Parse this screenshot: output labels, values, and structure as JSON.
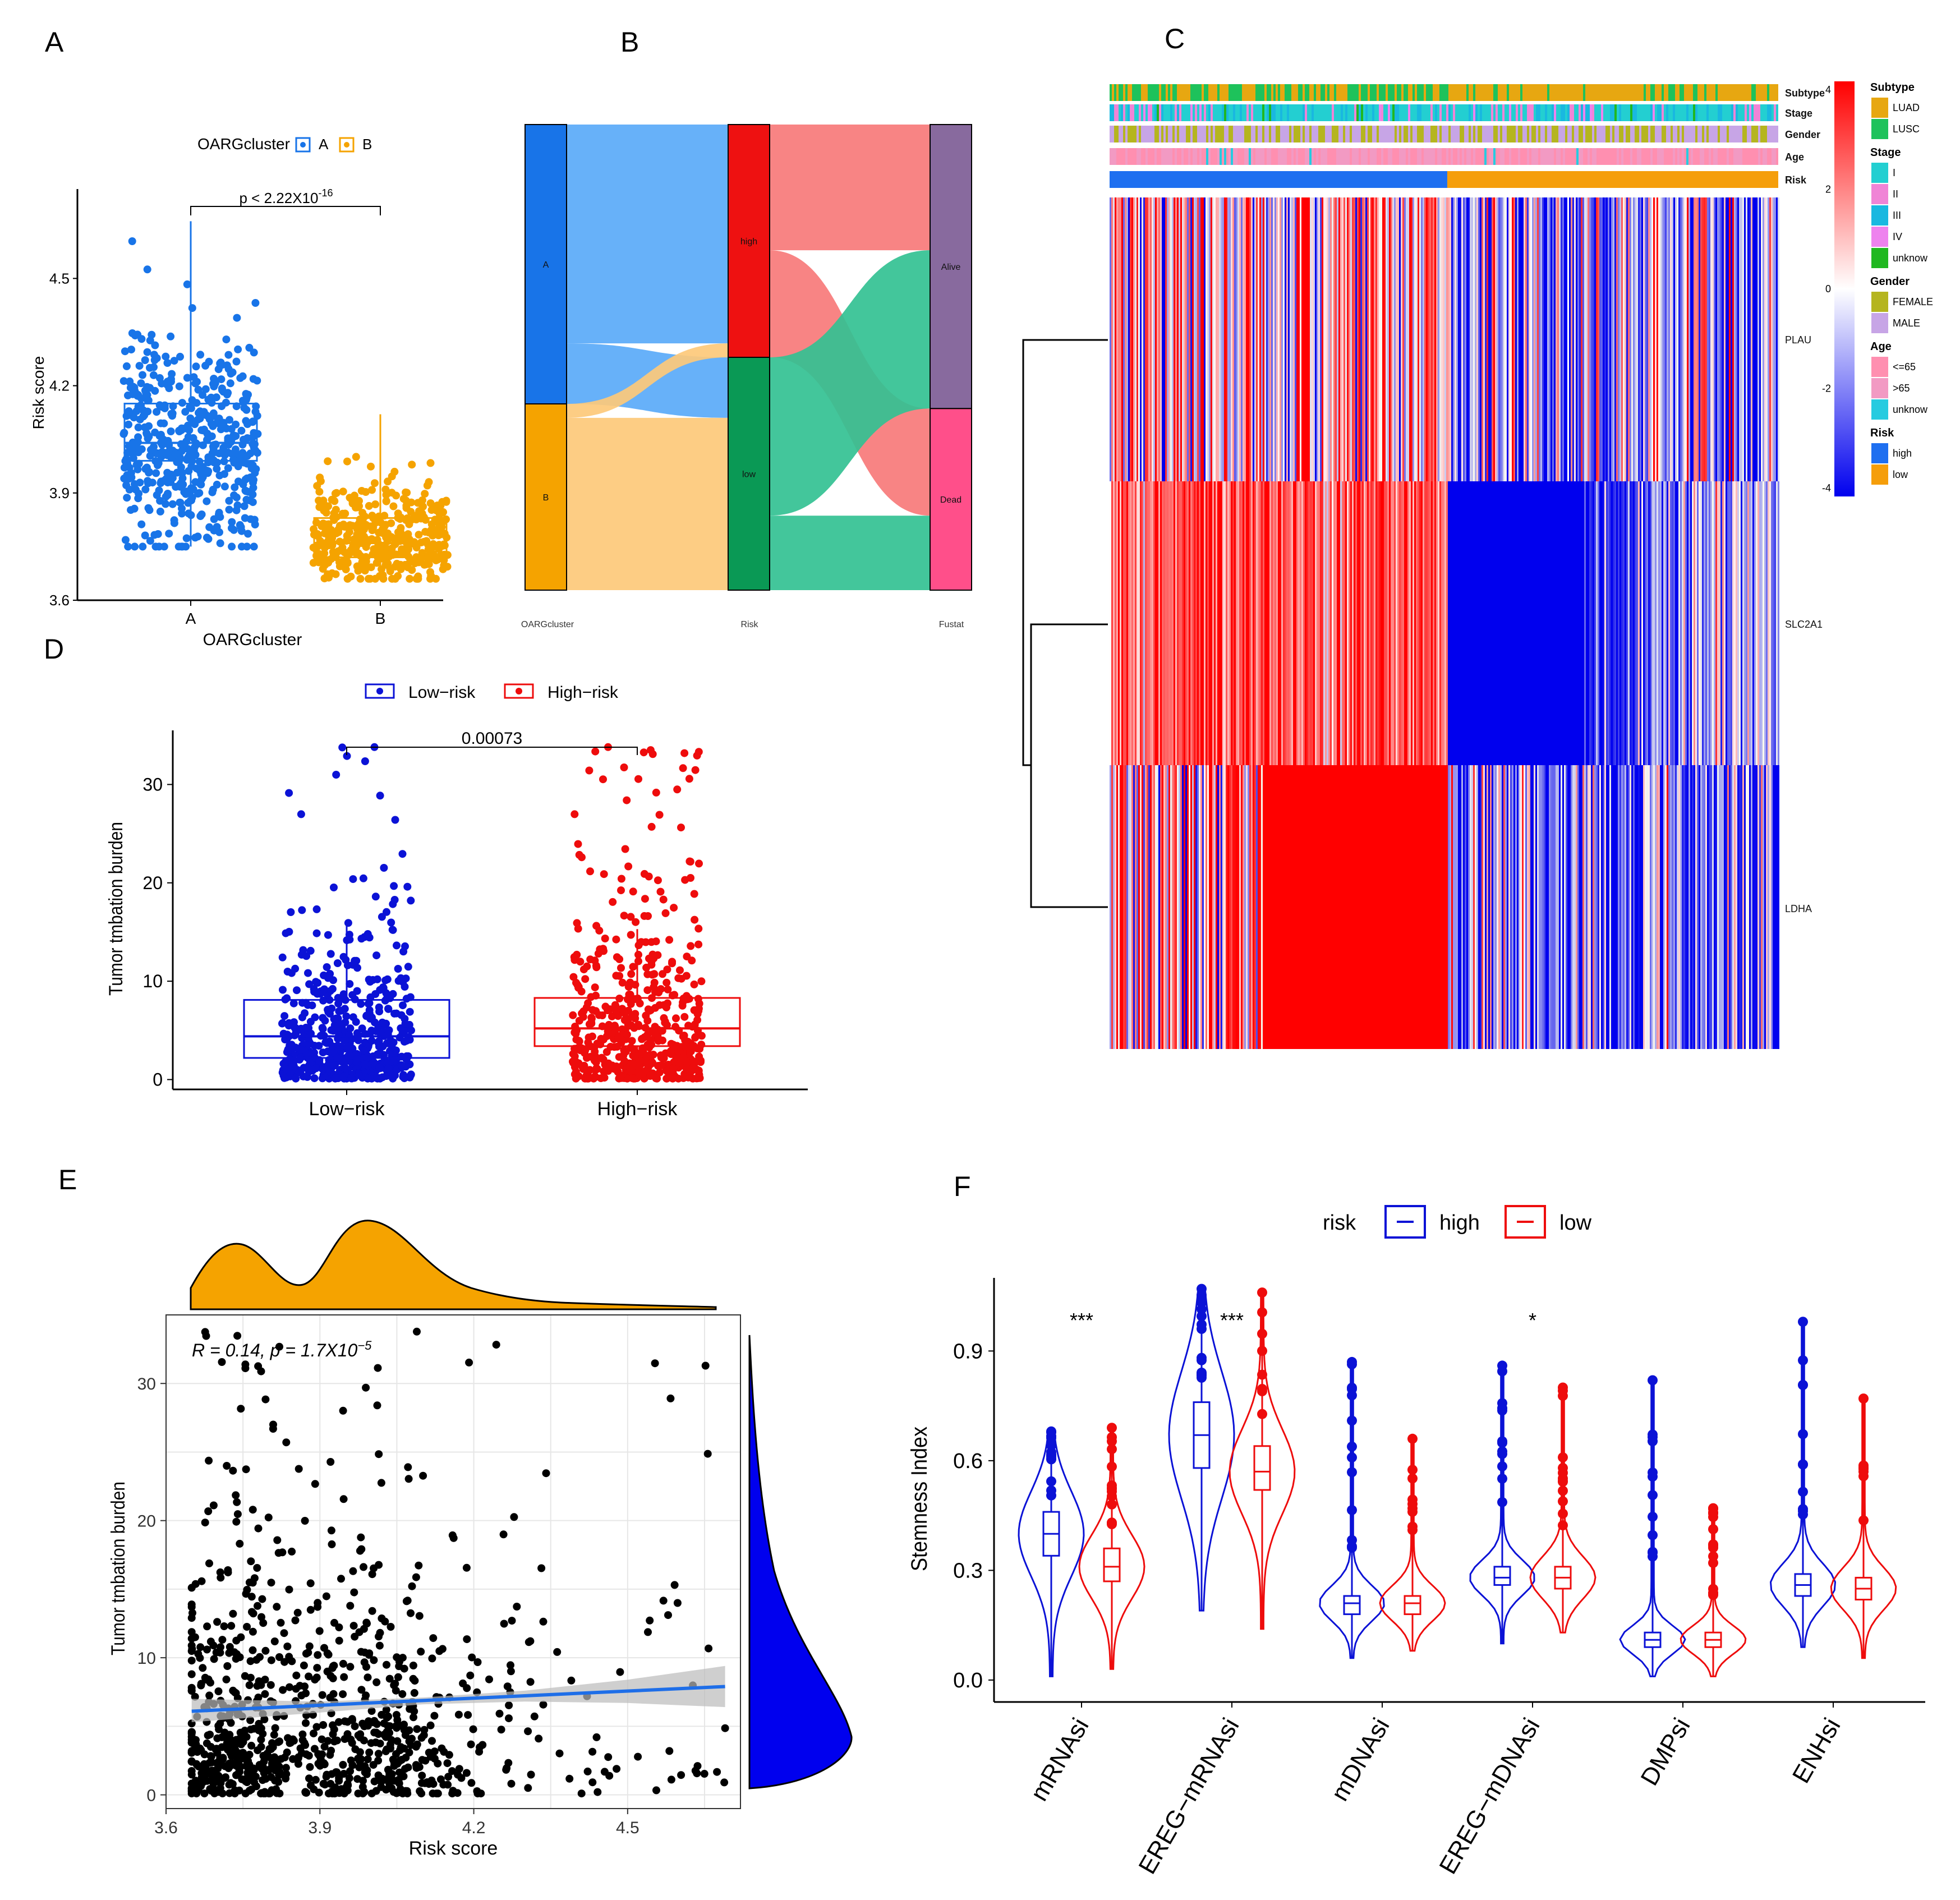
{
  "panels": {
    "A": {
      "letter": "A"
    },
    "B": {
      "letter": "B"
    },
    "C": {
      "letter": "C"
    },
    "D": {
      "letter": "D"
    },
    "E": {
      "letter": "E"
    },
    "F": {
      "letter": "F"
    }
  },
  "chart_data": [
    {
      "id": "A",
      "type": "boxplot",
      "legend_title": "OARGcluster",
      "legend": [
        "A",
        "B"
      ],
      "colors": [
        "#1874e8",
        "#f5a300"
      ],
      "xlabel": "OARGcluster",
      "ylabel": "Risk score",
      "ylim": [
        3.6,
        4.75
      ],
      "yticks": [
        "3.6",
        "3.9",
        "4.2",
        "4.5"
      ],
      "categories": [
        "A",
        "B"
      ],
      "boxes": [
        {
          "name": "A",
          "q1": 3.99,
          "median": 4.04,
          "q3": 4.15,
          "whisker_low": 3.75,
          "whisker_high": 4.66
        },
        {
          "name": "B",
          "q1": 3.72,
          "median": 3.76,
          "q3": 3.83,
          "whisker_low": 3.66,
          "whisker_high": 4.12
        }
      ],
      "pvalue": "p < 2.22X10",
      "pvalue_exp": "-16"
    },
    {
      "id": "B",
      "type": "sankey",
      "axes": [
        "OARGcluster",
        "Risk",
        "Fustat"
      ],
      "nodes": [
        {
          "axis": "OARGcluster",
          "label": "A",
          "value": 0.6,
          "color": "#1874e8"
        },
        {
          "axis": "OARGcluster",
          "label": "B",
          "value": 0.4,
          "color": "#f5a300"
        },
        {
          "axis": "Risk",
          "label": "high",
          "value": 0.5,
          "color": "#ee1111"
        },
        {
          "axis": "Risk",
          "label": "low",
          "value": 0.5,
          "color": "#0a9955"
        },
        {
          "axis": "Fustat",
          "label": "Alive",
          "value": 0.61,
          "color": "#886a9e"
        },
        {
          "axis": "Fustat",
          "label": "Dead",
          "value": 0.39,
          "color": "#ff4f8a"
        }
      ],
      "flows": [
        {
          "from": "A",
          "to": "high",
          "value": 0.47
        },
        {
          "from": "A",
          "to": "low",
          "value": 0.13
        },
        {
          "from": "B",
          "to": "high",
          "value": 0.03
        },
        {
          "from": "B",
          "to": "low",
          "value": 0.37
        },
        {
          "from": "high",
          "to": "Alive",
          "value": 0.27
        },
        {
          "from": "high",
          "to": "Dead",
          "value": 0.23
        },
        {
          "from": "low",
          "to": "Alive",
          "value": 0.34
        },
        {
          "from": "low",
          "to": "Dead",
          "value": 0.16
        }
      ]
    },
    {
      "id": "C",
      "type": "heatmap",
      "genes": [
        "PLAU",
        "SLC2A1",
        "LDHA"
      ],
      "annotation_tracks": [
        "Subtype",
        "Stage",
        "Gender",
        "Age",
        "Risk"
      ],
      "risk_groups": [
        {
          "label": "high",
          "fraction": 0.505
        },
        {
          "label": "low",
          "fraction": 0.495
        }
      ],
      "color_scale": {
        "ticks": [
          "4",
          "2",
          "0",
          "-2",
          "-4"
        ],
        "min": -4,
        "max": 4
      },
      "legends": [
        {
          "title": "Subtype",
          "items": [
            {
              "label": "LUAD",
              "color": "#e7a711"
            },
            {
              "label": "LUSC",
              "color": "#1ec25b"
            }
          ]
        },
        {
          "title": "Stage",
          "items": [
            {
              "label": "I",
              "color": "#23cfd1"
            },
            {
              "label": "II",
              "color": "#f084d6"
            },
            {
              "label": "III",
              "color": "#19b8e0"
            },
            {
              "label": "IV",
              "color": "#ee82ee"
            },
            {
              "label": "unknow",
              "color": "#20b820"
            }
          ]
        },
        {
          "title": "Gender",
          "items": [
            {
              "label": "FEMALE",
              "color": "#b5b51f"
            },
            {
              "label": "MALE",
              "color": "#c7a5e6"
            }
          ]
        },
        {
          "title": "Age",
          "items": [
            {
              "label": "<=65",
              "color": "#ff8fb0"
            },
            {
              "label": ">65",
              "color": "#f29ac3"
            },
            {
              "label": "unknow",
              "color": "#26cbe0"
            }
          ]
        },
        {
          "title": "Risk",
          "items": [
            {
              "label": "high",
              "color": "#1e6ff0"
            },
            {
              "label": "low",
              "color": "#f59e0b"
            }
          ]
        }
      ]
    },
    {
      "id": "D",
      "type": "boxplot",
      "legend": [
        "Low−risk",
        "High−risk"
      ],
      "colors": [
        "#0b12d6",
        "#ee0c0c"
      ],
      "categories": [
        "Low−risk",
        "High−risk"
      ],
      "ylabel": "Tumor tmbation burden",
      "ylim": [
        -1,
        35.5
      ],
      "yticks": [
        "0",
        "10",
        "20",
        "30"
      ],
      "boxes": [
        {
          "name": "Low−risk",
          "q1": 2.2,
          "median": 4.4,
          "q3": 8.1,
          "whisker_low": 0.2,
          "whisker_high": 16.0
        },
        {
          "name": "High−risk",
          "q1": 3.4,
          "median": 5.2,
          "q3": 8.3,
          "whisker_low": 0.2,
          "whisker_high": 15.3
        }
      ],
      "pvalue": "0.00073"
    },
    {
      "id": "E",
      "type": "scatter",
      "xlabel": "Risk score",
      "ylabel": "Tumor tmbation burden",
      "xlim": [
        3.6,
        4.72
      ],
      "ylim": [
        -1,
        35
      ],
      "xticks": [
        "3.6",
        "3.9",
        "4.2",
        "4.5"
      ],
      "yticks": [
        "0",
        "10",
        "20",
        "30"
      ],
      "annotation": "R = 0.14, p = 1.7X10",
      "annotation_exp": "−5",
      "fit": {
        "x": [
          3.65,
          4.69
        ],
        "y": [
          6.1,
          7.9
        ]
      },
      "n_points": 900
    },
    {
      "id": "F",
      "type": "violin",
      "legend_title": "risk",
      "legend": [
        "high",
        "low"
      ],
      "colors": [
        "#0b12d6",
        "#ee0c0c"
      ],
      "ylabel": "Stemness Index",
      "ylim": [
        -0.06,
        1.1
      ],
      "yticks": [
        "0.0",
        "0.3",
        "0.6",
        "0.9"
      ],
      "categories": [
        "mRNAsi",
        "EREG−mRNAsi",
        "mDNAsi",
        "EREG−mDNAsi",
        "DMPsi",
        "ENHsi"
      ],
      "significance": [
        "***",
        "***",
        "",
        "*",
        "",
        ""
      ],
      "series": [
        {
          "name": "high",
          "medians": [
            0.4,
            0.67,
            0.21,
            0.28,
            0.11,
            0.26
          ],
          "q1": [
            0.34,
            0.58,
            0.18,
            0.26,
            0.09,
            0.23
          ],
          "q3": [
            0.46,
            0.76,
            0.23,
            0.31,
            0.13,
            0.29
          ],
          "min": [
            0.01,
            0.19,
            0.06,
            0.1,
            0.01,
            0.09
          ],
          "max": [
            0.68,
            1.07,
            0.87,
            0.86,
            0.82,
            0.98
          ]
        },
        {
          "name": "low",
          "medians": [
            0.31,
            0.57,
            0.21,
            0.28,
            0.11,
            0.25
          ],
          "q1": [
            0.27,
            0.52,
            0.18,
            0.25,
            0.09,
            0.22
          ],
          "q3": [
            0.36,
            0.64,
            0.23,
            0.31,
            0.13,
            0.28
          ],
          "min": [
            0.03,
            0.14,
            0.08,
            0.13,
            0.01,
            0.06
          ],
          "max": [
            0.69,
            1.06,
            0.66,
            0.8,
            0.47,
            0.77
          ]
        }
      ]
    }
  ]
}
